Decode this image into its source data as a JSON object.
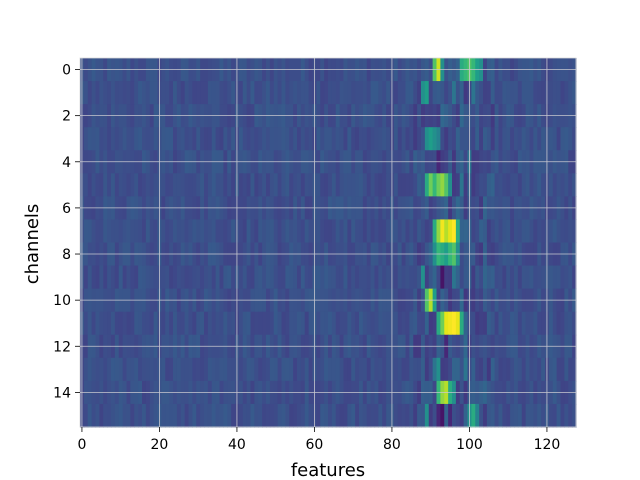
{
  "chart_data": {
    "type": "heatmap",
    "colormap": "viridis",
    "xlabel": "features",
    "ylabel": "channels",
    "n_cols": 128,
    "n_rows": 16,
    "xlim": [
      -0.5,
      127.5
    ],
    "ylim": [
      15.5,
      -0.5
    ],
    "grid": true,
    "value_range": [
      0,
      1
    ],
    "xticks": [
      0,
      20,
      40,
      60,
      80,
      100,
      120
    ],
    "xtick_labels": [
      "0",
      "20",
      "40",
      "60",
      "80",
      "100",
      "120"
    ],
    "yticks": [
      0,
      2,
      4,
      6,
      8,
      10,
      12,
      14
    ],
    "ytick_labels": [
      "0",
      "2",
      "4",
      "6",
      "8",
      "10",
      "12",
      "14"
    ],
    "rows": [
      {
        "channel": 0,
        "peaks": [
          [
            91,
            0.65
          ],
          [
            92,
            0.85
          ],
          [
            93,
            0.45
          ],
          [
            98,
            0.55
          ],
          [
            99,
            0.6
          ],
          [
            100,
            0.65
          ],
          [
            101,
            0.6
          ],
          [
            102,
            0.5
          ],
          [
            103,
            0.45
          ]
        ]
      },
      {
        "channel": 1,
        "peaks": [
          [
            88,
            0.45
          ],
          [
            89,
            0.5
          ],
          [
            96,
            0.35
          ],
          [
            101,
            0.35
          ]
        ]
      },
      {
        "channel": 2,
        "peaks": [
          [
            93,
            0.3
          ],
          [
            98,
            0.3
          ]
        ]
      },
      {
        "channel": 3,
        "peaks": [
          [
            89,
            0.45
          ],
          [
            90,
            0.5
          ],
          [
            91,
            0.45
          ],
          [
            92,
            0.4
          ]
        ]
      },
      {
        "channel": 4,
        "peaks": [
          [
            92,
            0.1
          ],
          [
            96,
            0.15
          ],
          [
            100,
            0.35
          ]
        ]
      },
      {
        "channel": 5,
        "peaks": [
          [
            89,
            0.55
          ],
          [
            90,
            0.7
          ],
          [
            91,
            0.6
          ],
          [
            92,
            0.7
          ],
          [
            93,
            0.75
          ],
          [
            94,
            0.65
          ],
          [
            95,
            0.45
          ],
          [
            98,
            0.35
          ]
        ]
      },
      {
        "channel": 6,
        "peaks": [
          [
            91,
            0.2
          ],
          [
            95,
            0.15
          ],
          [
            97,
            0.3
          ]
        ]
      },
      {
        "channel": 7,
        "peaks": [
          [
            91,
            0.55
          ],
          [
            92,
            0.75
          ],
          [
            93,
            0.95
          ],
          [
            94,
            0.8
          ],
          [
            95,
            0.9
          ],
          [
            96,
            1.0
          ],
          [
            97,
            0.55
          ]
        ]
      },
      {
        "channel": 8,
        "peaks": [
          [
            91,
            0.45
          ],
          [
            92,
            0.6
          ],
          [
            93,
            0.55
          ],
          [
            94,
            0.5
          ],
          [
            95,
            0.6
          ],
          [
            96,
            0.65
          ],
          [
            97,
            0.45
          ]
        ]
      },
      {
        "channel": 9,
        "peaks": [
          [
            88,
            0.45
          ],
          [
            92,
            0.2
          ],
          [
            93,
            0.05
          ],
          [
            96,
            0.35
          ]
        ]
      },
      {
        "channel": 10,
        "peaks": [
          [
            89,
            0.65
          ],
          [
            90,
            0.8
          ],
          [
            91,
            0.5
          ],
          [
            95,
            0.15
          ],
          [
            98,
            0.3
          ]
        ]
      },
      {
        "channel": 11,
        "peaks": [
          [
            92,
            0.55
          ],
          [
            93,
            0.7
          ],
          [
            94,
            0.9
          ],
          [
            95,
            0.95
          ],
          [
            96,
            1.0
          ],
          [
            97,
            0.9
          ],
          [
            98,
            0.55
          ]
        ]
      },
      {
        "channel": 12,
        "peaks": [
          [
            94,
            0.1
          ],
          [
            97,
            0.2
          ],
          [
            99,
            0.3
          ]
        ]
      },
      {
        "channel": 13,
        "peaks": [
          [
            91,
            0.35
          ],
          [
            92,
            0.45
          ],
          [
            95,
            0.2
          ],
          [
            99,
            0.35
          ]
        ]
      },
      {
        "channel": 14,
        "peaks": [
          [
            92,
            0.6
          ],
          [
            93,
            0.75
          ],
          [
            94,
            0.8
          ],
          [
            95,
            0.55
          ],
          [
            96,
            0.45
          ]
        ]
      },
      {
        "channel": 15,
        "peaks": [
          [
            89,
            0.45
          ],
          [
            92,
            0.1
          ],
          [
            93,
            0.05
          ],
          [
            95,
            0.1
          ],
          [
            100,
            0.45
          ],
          [
            101,
            0.55
          ],
          [
            102,
            0.4
          ]
        ]
      }
    ]
  }
}
